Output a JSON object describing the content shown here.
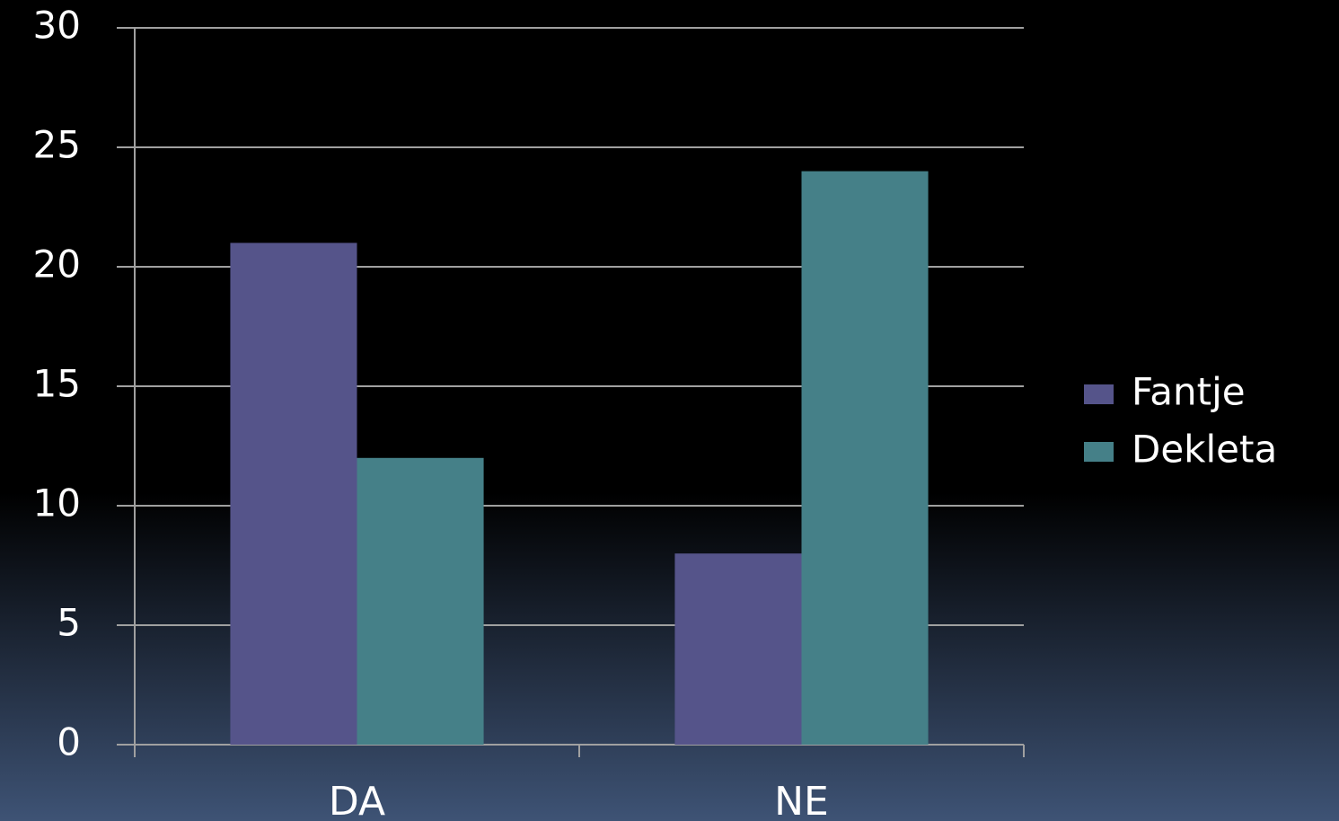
{
  "chart_data": {
    "type": "bar",
    "categories": [
      "DA",
      "NE"
    ],
    "series": [
      {
        "name": "Fantje",
        "color": "#55548a",
        "values": [
          21,
          8
        ]
      },
      {
        "name": "Dekleta",
        "color": "#458088",
        "values": [
          12,
          24
        ]
      }
    ],
    "ylim": [
      0,
      30
    ],
    "yticks": [
      0,
      5,
      10,
      15,
      20,
      25,
      30
    ],
    "grid": true,
    "legend": "right"
  }
}
